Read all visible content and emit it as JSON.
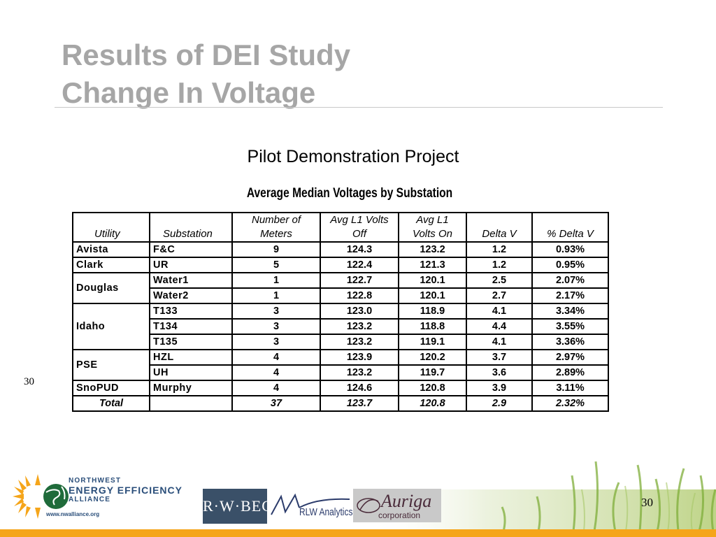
{
  "slide": {
    "title_line1": "Results of DEI Study",
    "title_line2": "Change In Voltage",
    "subtitle": "Pilot Demonstration Project",
    "side_number": "30",
    "page_number": "30"
  },
  "table": {
    "title": "Average Median Voltages by Substation",
    "headers": {
      "utility": "Utility",
      "substation": "Substation",
      "meters_l1": "Number of",
      "meters_l2": "Meters",
      "off_l1": "Avg L1 Volts",
      "off_l2": "Off",
      "on_l1": "Avg L1",
      "on_l2": "Volts On",
      "delta": "Delta V",
      "pct": "% Delta V"
    },
    "rows": [
      {
        "utility": "Avista",
        "substation": "F&C",
        "meters": "9",
        "off": "124.3",
        "on": "123.2",
        "delta": "1.2",
        "pct": "0.93%"
      },
      {
        "utility": "Clark",
        "substation": "UR",
        "meters": "5",
        "off": "122.4",
        "on": "121.3",
        "delta": "1.2",
        "pct": "0.95%"
      },
      {
        "utility": "Douglas",
        "substation": "Water1",
        "meters": "1",
        "off": "122.7",
        "on": "120.1",
        "delta": "2.5",
        "pct": "2.07%"
      },
      {
        "substation": "Water2",
        "meters": "1",
        "off": "122.8",
        "on": "120.1",
        "delta": "2.7",
        "pct": "2.17%"
      },
      {
        "utility": "Idaho",
        "substation": "T133",
        "meters": "3",
        "off": "123.0",
        "on": "118.9",
        "delta": "4.1",
        "pct": "3.34%"
      },
      {
        "substation": "T134",
        "meters": "3",
        "off": "123.2",
        "on": "118.8",
        "delta": "4.4",
        "pct": "3.55%"
      },
      {
        "substation": "T135",
        "meters": "3",
        "off": "123.2",
        "on": "119.1",
        "delta": "4.1",
        "pct": "3.36%"
      },
      {
        "utility": "PSE",
        "substation": "HZL",
        "meters": "4",
        "off": "123.9",
        "on": "120.2",
        "delta": "3.7",
        "pct": "2.97%"
      },
      {
        "substation": "UH",
        "meters": "4",
        "off": "123.2",
        "on": "119.7",
        "delta": "3.6",
        "pct": "2.89%"
      },
      {
        "utility": "SnoPUD",
        "substation": "Murphy",
        "meters": "4",
        "off": "124.6",
        "on": "120.8",
        "delta": "3.9",
        "pct": "3.11%"
      }
    ],
    "total": {
      "label": "Total",
      "meters": "37",
      "off": "123.7",
      "on": "120.8",
      "delta": "2.9",
      "pct": "2.32%"
    }
  },
  "logos": {
    "nw_line1": "NORTHWEST",
    "nw_line2": "ENERGY EFFICIENCY",
    "nw_line3": "ALLIANCE",
    "nw_url": "www.nwalliance.org",
    "rwbeck": "R·W·BECK",
    "rlw": "RLW Analytics",
    "auriga_name": "Auriga",
    "auriga_corp": "corporation"
  },
  "colors": {
    "title": "#a6a6a6",
    "accent_bar": "#f5a51a",
    "nw_blue": "#2a4e7a",
    "nw_sun": "#f5a51a",
    "grass_green": "#7fae3a"
  }
}
